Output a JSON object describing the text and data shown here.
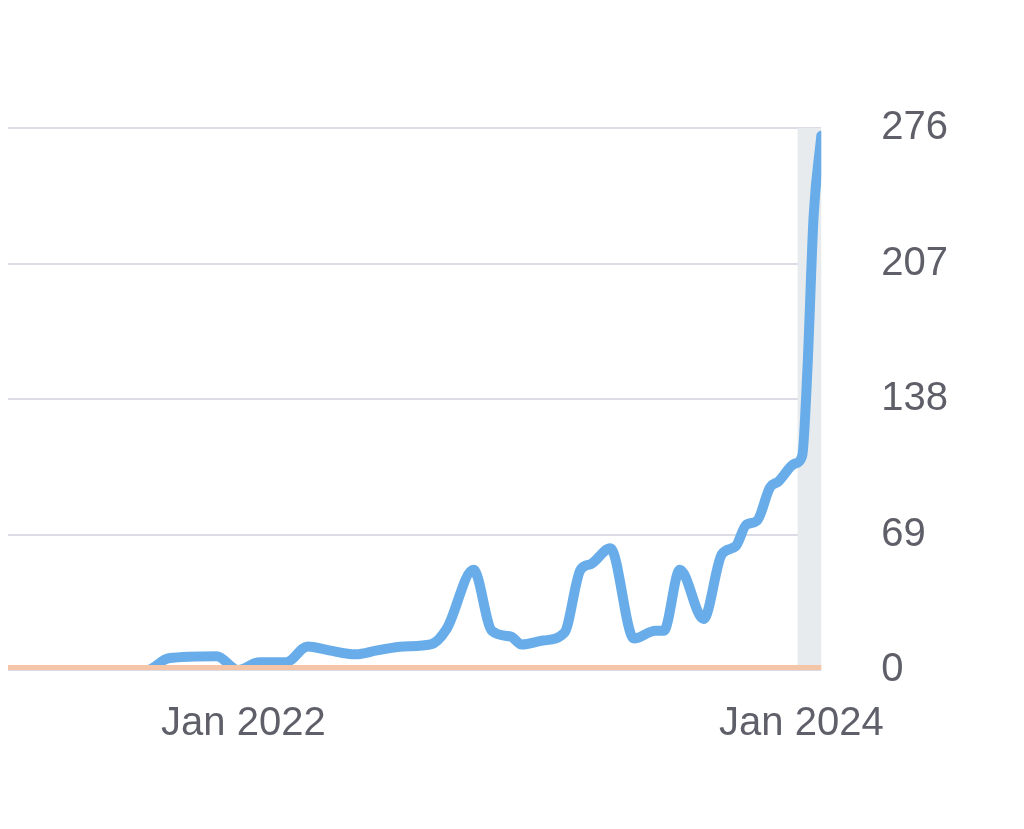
{
  "chart_data": {
    "type": "line",
    "x": [
      "2021-02-27",
      "2021-08-28",
      "2021-09-25",
      "2021-11-27",
      "2021-12-25",
      "2022-01-22",
      "2022-02-26",
      "2022-03-26",
      "2022-04-23",
      "2022-05-28",
      "2022-06-25",
      "2022-07-30",
      "2022-09-03",
      "2022-09-24",
      "2022-10-29",
      "2022-11-22",
      "2022-12-17",
      "2022-12-31",
      "2023-01-28",
      "2023-02-25",
      "2023-03-18",
      "2023-04-01",
      "2023-04-26",
      "2023-05-27",
      "2023-06-24",
      "2023-07-05",
      "2023-07-26",
      "2023-08-26",
      "2023-09-19",
      "2023-10-07",
      "2023-10-21",
      "2023-11-04",
      "2023-11-21",
      "2023-12-02",
      "2023-12-23",
      "2024-01-02",
      "2024-01-09",
      "2024-01-17",
      "2024-01-27"
    ],
    "series": [
      {
        "color": "#f4c5a6",
        "x": [
          "2021-02-27",
          "2024-01-27"
        ],
        "values": [
          0,
          0
        ]
      },
      {
        "color": "#68ade9",
        "values": [
          0,
          0,
          6,
          7,
          0,
          4,
          4,
          12,
          10,
          8,
          10,
          12,
          13,
          21,
          51,
          20,
          17,
          13,
          15,
          19,
          51,
          54,
          62,
          16,
          20,
          20,
          51,
          26,
          59,
          63,
          74,
          76,
          93,
          96,
          105,
          109,
          154,
          231,
          272
        ]
      }
    ],
    "xlim": [
      "2021-02-27",
      "2024-01-27"
    ],
    "xticks": [
      {
        "value": "2022-01",
        "label": "Jan 2022"
      },
      {
        "value": "2024-01",
        "label": "Jan 2024"
      }
    ],
    "ylim": [
      0,
      276
    ],
    "yticks": [
      0,
      69,
      138,
      207,
      276
    ],
    "grid": "y",
    "legend": false,
    "line_style": "solid",
    "marker": "none",
    "bands": [
      {
        "axis": "x",
        "from": "2023-12-27",
        "to": "2024-01-27",
        "color": "#e8ebed"
      }
    ]
  }
}
